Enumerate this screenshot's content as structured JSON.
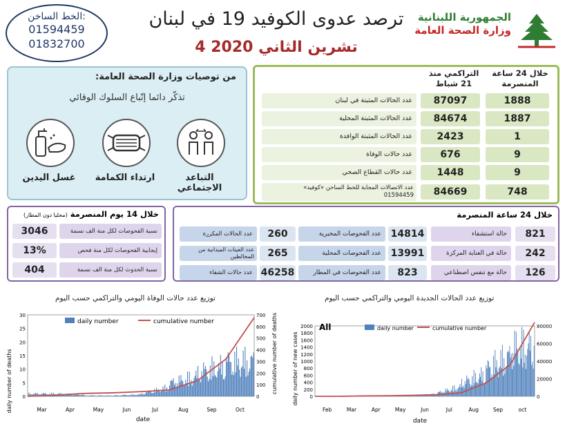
{
  "header": {
    "hotline_title": "الخط الساخن:",
    "hotline_1": "01594459",
    "hotline_2": "01832700",
    "title": "ترصد عدوى الكوفيد 19 في لبنان",
    "date": "4 تشرين الثاني 2020",
    "republic": "الجمهورية اللبنانية",
    "ministry": "وزارة الصحة العامة"
  },
  "recommendations": {
    "heading": "من توصيات وزارة الصحة العامة:",
    "subtitle": "تذكّر دائما إتّباع السلوك الوقائي",
    "items": [
      "التباعد الاجتماعي",
      "ارتداء الكمامة",
      "غسل اليدين"
    ]
  },
  "cumulative": {
    "col_24h": "خلال 24 ساعة المنصرمة",
    "col_total": "التراكمي منذ 21 شباط",
    "rows": [
      {
        "label": "عدد الحالات المثبتة في لبنان",
        "total": "87097",
        "day": "1888"
      },
      {
        "label": "عدد الحالات المثبتة المحلية",
        "total": "84674",
        "day": "1887"
      },
      {
        "label": "عدد الحالات المثبتة الوافدة",
        "total": "2423",
        "day": "1"
      },
      {
        "label": "عدد حالات الوفاة",
        "total": "676",
        "day": "9"
      },
      {
        "label": "عدد حالات القطاع الصحي",
        "total": "1448",
        "day": "9"
      },
      {
        "label": "عدد الاتصالات المجابة للخط الساخن «كوفيد»",
        "label2": "01594459",
        "total": "84669",
        "day": "748"
      }
    ]
  },
  "last14": {
    "heading": "خلال 14 يوم المنصرمة",
    "heading_note": "(محليا دون المطار)",
    "rows": [
      {
        "label": "نسبة الفحوصات لكل منة الف نسمة",
        "value": "3046"
      },
      {
        "label": "إيجابية الفحوصات لكل منة فحص",
        "value": "13%"
      },
      {
        "label": "نسبة الحدوث لكل منة الف نسمة",
        "value": "404"
      }
    ]
  },
  "last24": {
    "heading": "خلال 24 ساعة المنصرمة",
    "col1": [
      {
        "label": "حالة استشفاء",
        "value": "821"
      },
      {
        "label": "حالة في العناية المركزة",
        "value": "242"
      },
      {
        "label": "حالة مع تنفس اصطناعي",
        "value": "126"
      }
    ],
    "col2": [
      {
        "label": "عدد الفحوصات المخبرية",
        "value": "14814"
      },
      {
        "label": "عدد الفحوصات المحلية",
        "value": "13991"
      },
      {
        "label": "عدد الفحوصات في المطار",
        "value": "823"
      }
    ],
    "col3": [
      {
        "label": "عدد الحالات المكررة",
        "value": "260"
      },
      {
        "label": "عدد العينات الميدانية من المخالطين",
        "value": "265"
      },
      {
        "label": "عدد حالات الشفاء",
        "value": "46258"
      }
    ]
  },
  "chart_data": [
    {
      "type": "bar",
      "title": "توزيع عدد حالات الوفاة اليومي والتراكمي حسب اليوم",
      "xlabel": "date",
      "ylabel": "daily number of deaths",
      "y2label": "cumulative number of deaths",
      "ylim": [
        0,
        30
      ],
      "y2lim": [
        0,
        700
      ],
      "months": [
        "Mar",
        "Apr",
        "May",
        "Jun",
        "Jul",
        "Aug",
        "Sep",
        "Oct"
      ],
      "legend": [
        "daily number",
        "cumulative number"
      ],
      "colors": {
        "bar": "#4f81bd",
        "line": "#c0504d"
      },
      "series": [
        {
          "name": "daily number",
          "month_avg": [
            1,
            1,
            0.3,
            0.3,
            1,
            5,
            9,
            13
          ]
        },
        {
          "name": "cumulative number",
          "month_end": [
            10,
            25,
            30,
            40,
            55,
            135,
            320,
            676
          ]
        }
      ]
    },
    {
      "type": "bar",
      "title": "توزيع عدد الحالات الجديدة اليومي والتراكمي حسب اليوم",
      "annotation": "All",
      "xlabel": "date",
      "ylabel": "daily number of new cases",
      "ylim": [
        0,
        2000
      ],
      "y2lim": [
        0,
        80000
      ],
      "months": [
        "Feb",
        "Mar",
        "Apr",
        "May",
        "Jun",
        "Jul",
        "Aug",
        "Sep",
        "oct"
      ],
      "legend": [
        "daily number",
        "cumulative number"
      ],
      "colors": {
        "bar": "#4f81bd",
        "line": "#c0504d"
      },
      "series": [
        {
          "name": "daily number",
          "month_avg": [
            1,
            15,
            20,
            15,
            20,
            100,
            400,
            800,
            1400
          ]
        },
        {
          "name": "cumulative number",
          "month_end": [
            1,
            450,
            700,
            1200,
            1800,
            4000,
            15000,
            36000,
            84000
          ]
        }
      ]
    }
  ]
}
